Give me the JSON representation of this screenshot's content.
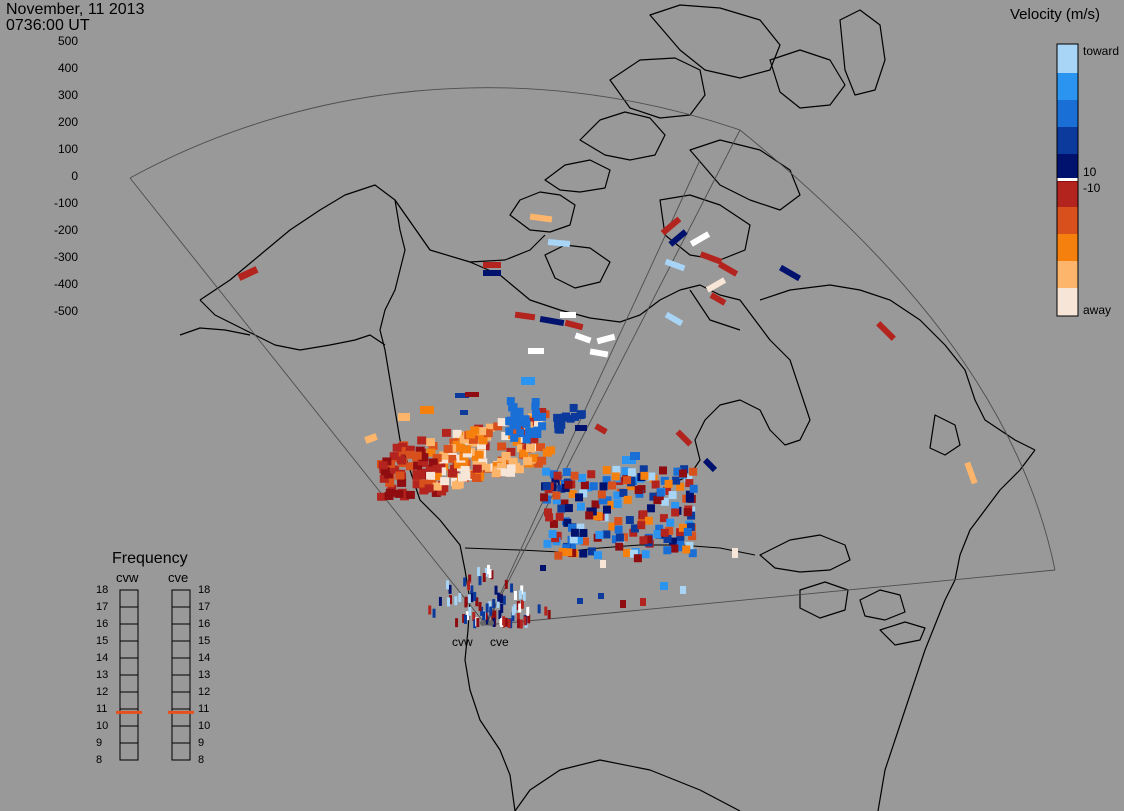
{
  "header": {
    "date": "November, 11 2013",
    "time": "0736:00 UT"
  },
  "colorbar": {
    "title": "Velocity (m/s)",
    "ticks": [
      "500",
      "400",
      "300",
      "200",
      "100",
      "0",
      "-100",
      "-200",
      "-300",
      "-400",
      "-500"
    ],
    "toward_label": "toward",
    "away_label": "away",
    "pos_threshold": "10",
    "neg_threshold": "-10",
    "colors": [
      "#f7e6d7",
      "#fdb56b",
      "#f5800d",
      "#d8501c",
      "#b3241e",
      "#8f0c10",
      "#ffffff",
      "#00116e",
      "#0b3a9c",
      "#1a6fd6",
      "#2a94f0",
      "#a8d4f5"
    ]
  },
  "frequency": {
    "title": "Frequency",
    "radars": [
      "cvw",
      "cve"
    ],
    "scale": [
      "18",
      "17",
      "16",
      "15",
      "14",
      "13",
      "12",
      "11",
      "10",
      "9",
      "8"
    ],
    "values": [
      10.8,
      10.8
    ],
    "marker_color": "#e6501c"
  },
  "sites": [
    "cvw",
    "cve"
  ]
}
